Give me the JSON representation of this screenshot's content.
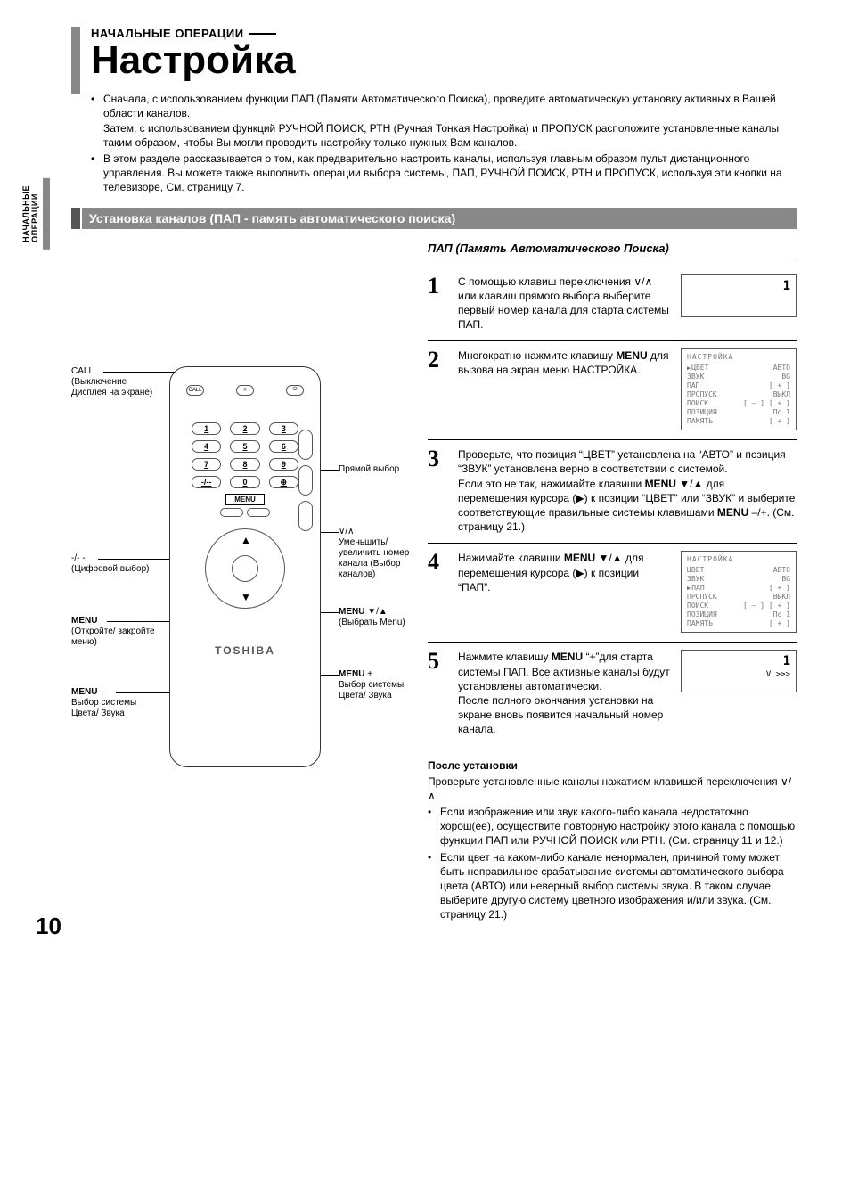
{
  "sideTab": "НАЧАЛЬНЫЕ\nОПЕРАЦИИ",
  "overline": "НАЧАЛЬНЫЕ ОПЕРАЦИИ",
  "title": "Настройка",
  "intro": [
    "Сначала, с использованием функции ПАП (Памяти Автоматического Поиска), проведите автоматическую установку активных в Вашей области каналов.\nЗатем, с использованием функций РУЧНОЙ ПОИСК, РТН (Ручная Тонкая Настройка) и ПРОПУСК расположите установленные каналы таким образом, чтобы Вы могли проводить настройку только нужных Вам каналов.",
    "В этом разделе рассказывается о том, как предварительно настроить каналы, используя главным образом пульт дистанционного управления. Вы можете также выполнить операции выбора системы, ПАП, РУЧНОЙ ПОИСК, РТН и ПРОПУСК, используя эти кнопки на телевизоре, См. страницу 7."
  ],
  "sectionTitle": "Установка каналов (ПАП - память автоматического поиска)",
  "papHeading": "ПАП (Память Автоматического Поиска)",
  "steps": [
    {
      "num": "1",
      "text": "С помощью клавиш переключения ∨/∧ или клавиш прямого выбора выберите первый номер канала для старта системы ПАП.",
      "osd": {
        "type": "big",
        "value": "1"
      }
    },
    {
      "num": "2",
      "text": "Многократно нажмите клавишу MENU для вызова на экран меню НАСТРОЙКА.",
      "osd": {
        "type": "menu",
        "title": "НАСТРОЙКА",
        "cursorIndex": 0,
        "rows": [
          [
            "ЦВЕТ",
            "АВТО"
          ],
          [
            "ЗВУК",
            "BG"
          ],
          [
            "ПАП",
            "[ + ]"
          ],
          [
            "ПРОПУСК",
            "ВЫКЛ"
          ],
          [
            "ПОИСК",
            "[ – ] [ + ]"
          ],
          [
            "ПОЗИЦИЯ",
            "По 1"
          ],
          [
            "ПАМЯТЬ",
            "[ + ]"
          ]
        ]
      }
    },
    {
      "num": "3",
      "text": "Проверьте, что позиция “ЦВЕТ” установлена на “АВТО” и позиция “ЗВУК” установлена верно в соответствии с системой.\nЕсли это не так, нажимайте клавиши MENU ▼/▲ для перемещения курсора (▶) к позиции “ЦВЕТ” или “ЗВУК” и выберите соответствующие правильные системы клавишами MENU –/+. (См. страницу 21.)",
      "osd": null
    },
    {
      "num": "4",
      "text": "Нажимайте клавиши MENU ▼/▲ для перемещения курсора (▶) к позиции “ПАП”.",
      "osd": {
        "type": "menu",
        "title": "НАСТРОЙКА",
        "cursorIndex": 2,
        "rows": [
          [
            "ЦВЕТ",
            "АВТО"
          ],
          [
            "ЗВУК",
            "BG"
          ],
          [
            "ПАП",
            "[ + ]"
          ],
          [
            "ПРОПУСК",
            "ВЫКЛ"
          ],
          [
            "ПОИСК",
            "[ – ] [ + ]"
          ],
          [
            "ПОЗИЦИЯ",
            "По 1"
          ],
          [
            "ПАМЯТЬ",
            "[ + ]"
          ]
        ]
      }
    },
    {
      "num": "5",
      "text": "Нажмите клавишу MENU “+”для старта системы ПАП. Все активные каналы будут установлены автоматически.\nПосле полного окончания установки на экране вновь появится начальный номер канала.",
      "osd": {
        "type": "progress",
        "value": "1",
        "bar": "V  >>>"
      }
    }
  ],
  "after": {
    "heading": "После установки",
    "lead": "Проверьте установленные каналы нажатием клавишей переключения ∨/∧.",
    "items": [
      "Если изображение или звук какого-либо канала недостаточно хорош(ее), осуществите повторную настройку этого канала с помощью функции ПАП или РУЧНОЙ ПОИСК или РТН. (См. страницу 11 и 12.)",
      "Если цвет на каком-либо канале ненормален, причиной тому может быть неправильное срабатывание системы автоматического выбора цвета (АВТО) или неверный выбор системы звука. В таком случае выберите другую систему цветного изображения и/или звука. (См. страницу 21.)"
    ]
  },
  "remote": {
    "topButtons": [
      "CALL",
      "✳",
      "⏻"
    ],
    "numbers": [
      "1",
      "2",
      "3",
      "4",
      "5",
      "6",
      "7",
      "8",
      "9",
      "-/--",
      "0",
      "⊕"
    ],
    "menuLabel": "MENU",
    "brand": "TOSHIBA",
    "sideSymbols": [
      "⊿",
      "∧",
      "∨"
    ]
  },
  "callouts": {
    "call": "CALL\n(Выключение Дисплея на экране)",
    "digits": "-/- -\n(Цифровой выбор)",
    "menuOpen": "MENU\n(Откройте/ закройте меню)",
    "menuMinus": "MENU –\nВыбор системы Цвета/ Звука",
    "direct": "Прямой выбор",
    "vup": "∨/∧\nУменьшить/ увеличить номер канала (Выбор каналов)",
    "menuArrows": "MENU ▼/▲\n(Выбрать Menu)",
    "menuPlus": "MENU +\nВыбор системы Цвета/ Звука"
  },
  "pageNumber": "10"
}
